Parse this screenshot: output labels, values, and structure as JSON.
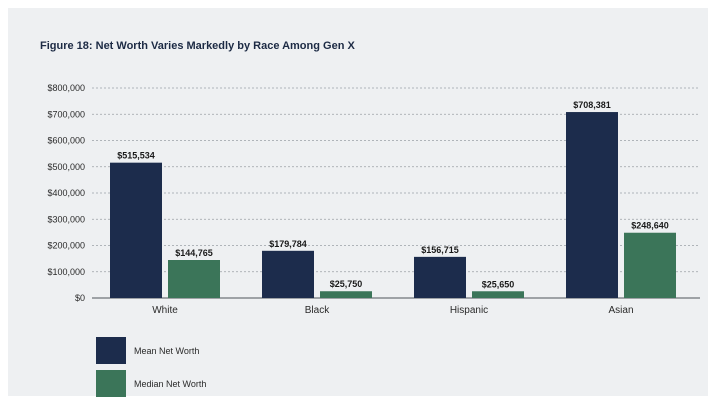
{
  "title": "Figure 18: Net Worth Varies Markedly by Race Among Gen X",
  "colors": {
    "mean": "#1c2c4c",
    "median": "#3b7559",
    "grid": "#9aa0a6",
    "axis": "#6f7478",
    "text": "#2a2a2a"
  },
  "chart_data": {
    "type": "bar",
    "title": "Figure 18: Net Worth Varies Markedly by Race Among Gen X",
    "xlabel": "",
    "ylabel": "",
    "categories": [
      "White",
      "Black",
      "Hispanic",
      "Asian"
    ],
    "ylim": [
      0,
      800000
    ],
    "yticks": [
      0,
      100000,
      200000,
      300000,
      400000,
      500000,
      600000,
      700000,
      800000
    ],
    "ytick_labels": [
      "$0",
      "$100,000",
      "$200,000",
      "$300,000",
      "$400,000",
      "$500,000",
      "$600,000",
      "$700,000",
      "$800,000"
    ],
    "grid": true,
    "legend_position": "bottom-left",
    "series": [
      {
        "name": "Mean Net Worth",
        "values": [
          515534,
          179784,
          156715,
          708381
        ],
        "labels": [
          "$515,534",
          "$179,784",
          "$156,715",
          "$708,381"
        ]
      },
      {
        "name": "Median Net Worth",
        "values": [
          144765,
          25750,
          25650,
          248640
        ],
        "labels": [
          "$144,765",
          "$25,750",
          "$25,650",
          "$248,640"
        ]
      }
    ]
  }
}
